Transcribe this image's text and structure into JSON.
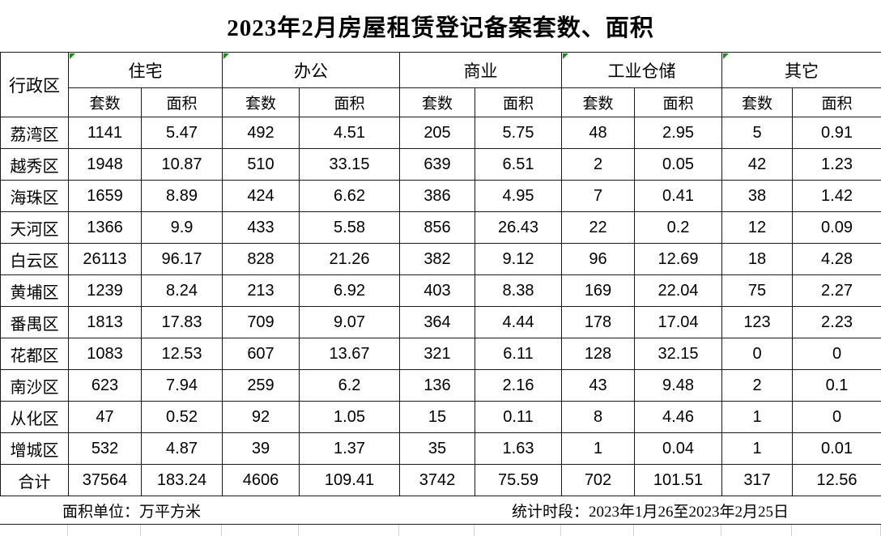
{
  "title": "2023年2月房屋租赁登记备案套数、面积",
  "table": {
    "row_header_label": "行政区",
    "sub_headers": [
      "套数",
      "面积"
    ],
    "groups": [
      {
        "label": "住宅",
        "flag": true
      },
      {
        "label": "办公",
        "flag": true
      },
      {
        "label": "商业",
        "flag": false
      },
      {
        "label": "工业仓储",
        "flag": true
      },
      {
        "label": "其它",
        "flag": true
      }
    ],
    "rows": [
      {
        "district": "荔湾区",
        "values": [
          "1141",
          "5.47",
          "492",
          "4.51",
          "205",
          "5.75",
          "48",
          "2.95",
          "5",
          "0.91"
        ]
      },
      {
        "district": "越秀区",
        "values": [
          "1948",
          "10.87",
          "510",
          "33.15",
          "639",
          "6.51",
          "2",
          "0.05",
          "42",
          "1.23"
        ]
      },
      {
        "district": "海珠区",
        "values": [
          "1659",
          "8.89",
          "424",
          "6.62",
          "386",
          "4.95",
          "7",
          "0.41",
          "38",
          "1.42"
        ]
      },
      {
        "district": "天河区",
        "values": [
          "1366",
          "9.9",
          "433",
          "5.58",
          "856",
          "26.43",
          "22",
          "0.2",
          "12",
          "0.09"
        ]
      },
      {
        "district": "白云区",
        "values": [
          "26113",
          "96.17",
          "828",
          "21.26",
          "382",
          "9.12",
          "96",
          "12.69",
          "18",
          "4.28"
        ]
      },
      {
        "district": "黄埔区",
        "values": [
          "1239",
          "8.24",
          "213",
          "6.92",
          "403",
          "8.38",
          "169",
          "22.04",
          "75",
          "2.27"
        ]
      },
      {
        "district": "番禺区",
        "values": [
          "1813",
          "17.83",
          "709",
          "9.07",
          "364",
          "4.44",
          "178",
          "17.04",
          "123",
          "2.23"
        ]
      },
      {
        "district": "花都区",
        "values": [
          "1083",
          "12.53",
          "607",
          "13.67",
          "321",
          "6.11",
          "128",
          "32.15",
          "0",
          "0"
        ]
      },
      {
        "district": "南沙区",
        "values": [
          "623",
          "7.94",
          "259",
          "6.2",
          "136",
          "2.16",
          "43",
          "9.48",
          "2",
          "0.1"
        ]
      },
      {
        "district": "从化区",
        "values": [
          "47",
          "0.52",
          "92",
          "1.05",
          "15",
          "0.11",
          "8",
          "4.46",
          "1",
          "0"
        ]
      },
      {
        "district": "增城区",
        "values": [
          "532",
          "4.87",
          "39",
          "1.37",
          "35",
          "1.63",
          "1",
          "0.04",
          "1",
          "0.01"
        ]
      },
      {
        "district": "合计",
        "values": [
          "37564",
          "183.24",
          "4606",
          "109.41",
          "3742",
          "75.59",
          "702",
          "101.51",
          "317",
          "12.56"
        ]
      }
    ]
  },
  "footer": {
    "unit_note": "面积单位：万平方米",
    "period_note": "统计时段：2023年1月26至2023年2月25日"
  },
  "colors": {
    "border_black": "#1a1a1a",
    "error_flag_green": "#1e8a1e",
    "leftover_gridline_gray": "#d4d4d4"
  }
}
